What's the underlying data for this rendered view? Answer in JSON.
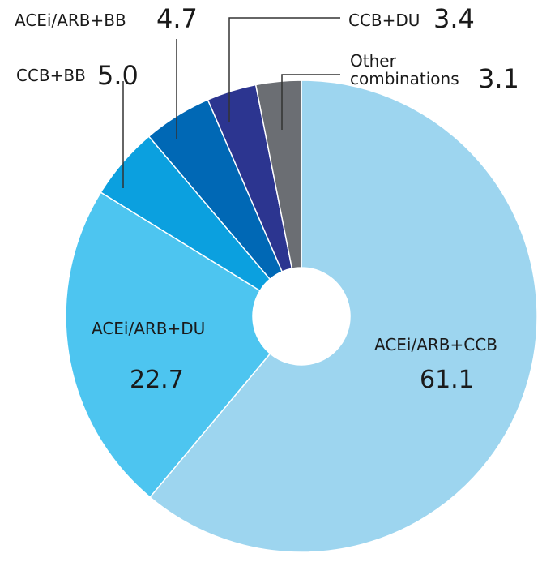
{
  "chart_data": {
    "type": "pie",
    "categories": [
      "ACEi/ARB+CCB",
      "ACEi/ARB+DU",
      "CCB+BB",
      "ACEi/ARB+BB",
      "CCB+DU",
      "Other combinations"
    ],
    "values": [
      61.1,
      22.7,
      5.0,
      4.7,
      3.4,
      3.1
    ],
    "value_labels": [
      "61.1",
      "22.7",
      "5.0",
      "4.7",
      "3.4",
      "3.1"
    ],
    "colors": [
      "#9dd5ef",
      "#4dc5f0",
      "#0ba0df",
      "#0068b5",
      "#2c3590",
      "#6b6e73"
    ]
  }
}
